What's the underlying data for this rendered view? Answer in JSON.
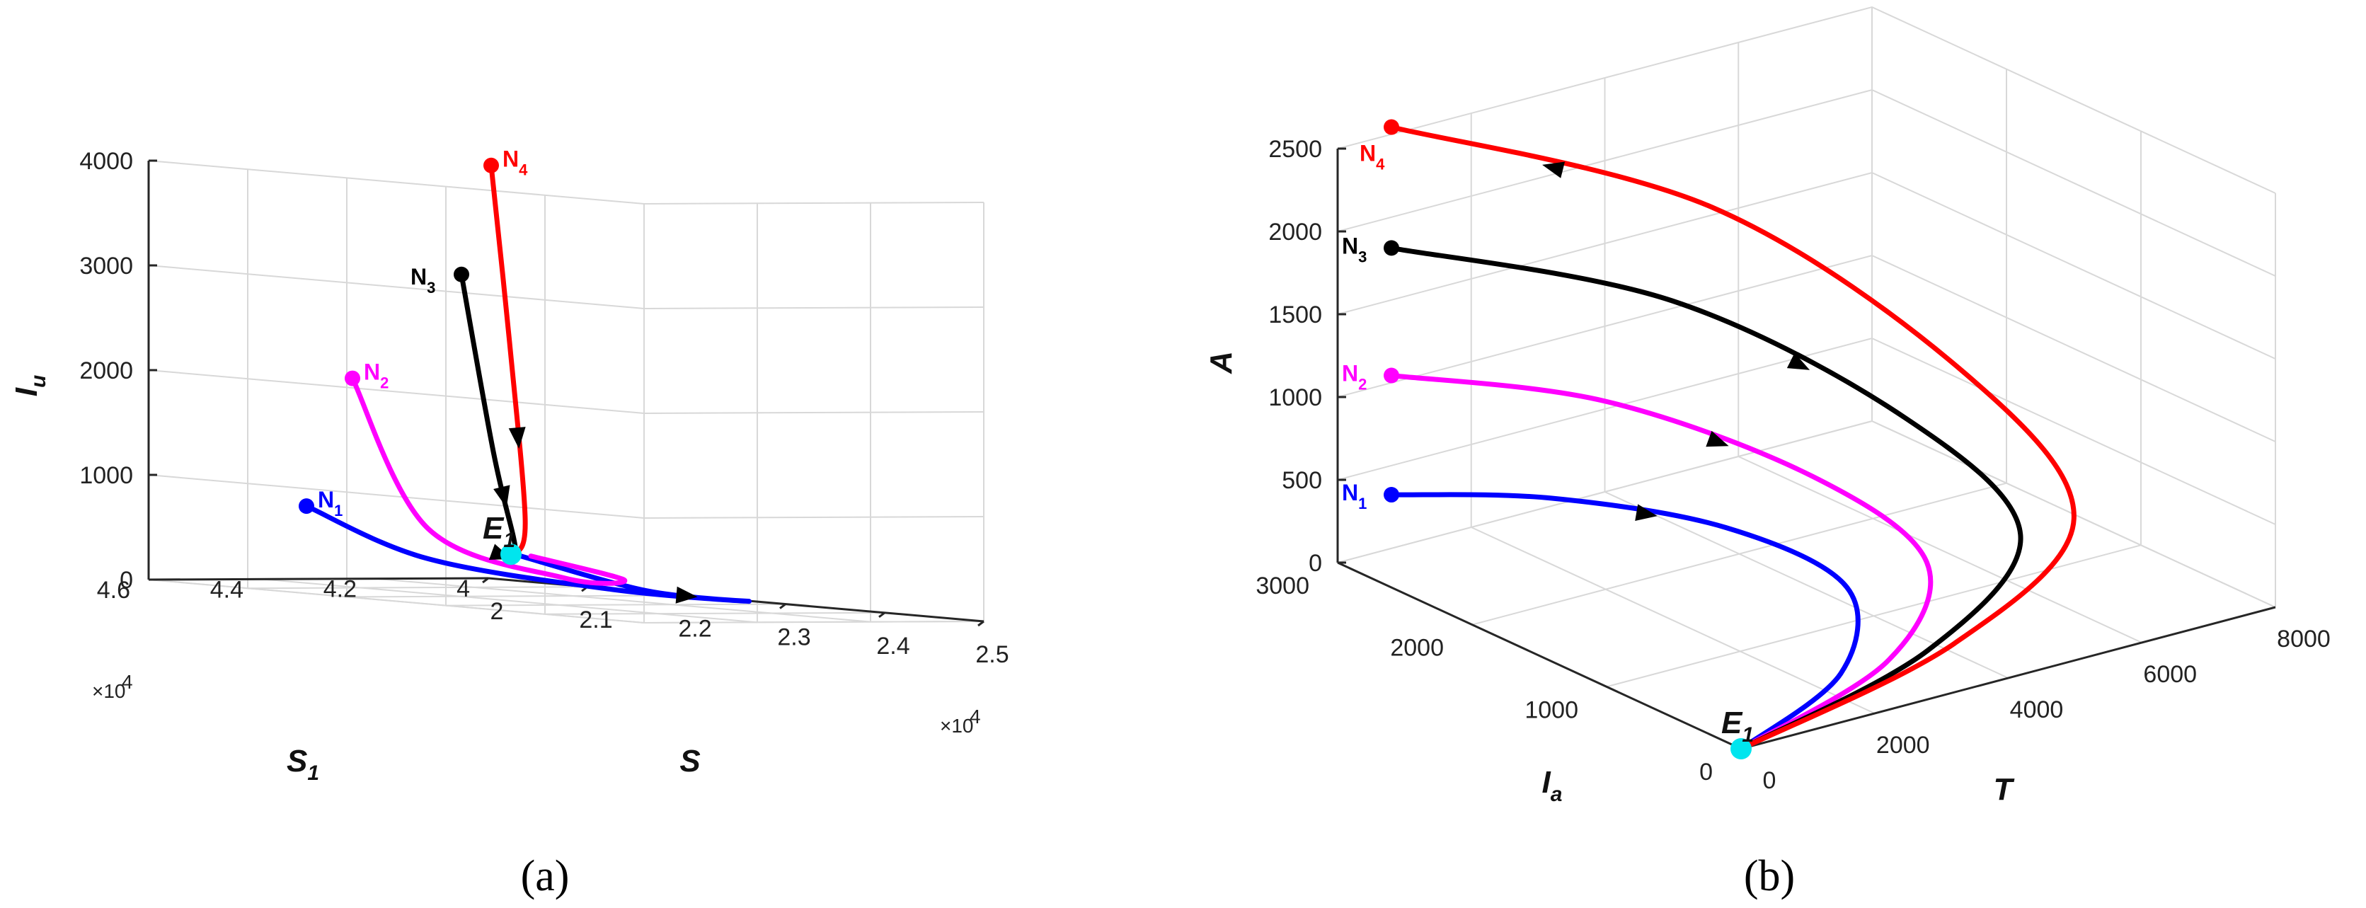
{
  "chart_data": [
    {
      "type": "line",
      "panel_label": "(a)",
      "axes": {
        "S": {
          "label": "S",
          "ticks": [
            "2",
            "2.1",
            "2.2",
            "2.3",
            "2.4",
            "2.5"
          ],
          "range": [
            2,
            2.5
          ],
          "exponent": "×10",
          "exponent_power": "4"
        },
        "S1": {
          "label": "S",
          "label_sub": "1",
          "ticks": [
            "4",
            "4.2",
            "4.4",
            "4.6"
          ],
          "range": [
            4,
            4.6
          ],
          "exponent": "×10",
          "exponent_power": "4"
        },
        "Iu": {
          "label": "I",
          "label_sub": "u",
          "ticks": [
            "0",
            "1000",
            "2000",
            "3000",
            "4000"
          ],
          "range": [
            0,
            4000
          ]
        }
      },
      "equilibrium": {
        "name": "E",
        "sub": "1",
        "S": 22000,
        "S1": 43100,
        "Iu": 400
      },
      "series": [
        {
          "name": "N",
          "sub": "1",
          "color": "#0000ff",
          "points": [
            [
              20050,
              43300,
              700
            ],
            [
              20700,
              42300,
              250
            ],
            [
              22000,
              41300,
              60
            ],
            [
              23600,
              41700,
              80
            ],
            [
              23200,
              42800,
              150
            ],
            [
              22050,
              43100,
              400
            ]
          ]
        },
        {
          "name": "N",
          "sub": "2",
          "color": "#ff00ff",
          "points": [
            [
              21000,
              44150,
              2000
            ],
            [
              21450,
              43600,
              600
            ],
            [
              22300,
              42700,
              200
            ],
            [
              22800,
              42500,
              220
            ],
            [
              22200,
              43100,
              400
            ]
          ]
        },
        {
          "name": "N",
          "sub": "3",
          "color": "#000000",
          "points": [
            [
              22300,
              44500,
              3100
            ],
            [
              22280,
              43900,
              1400
            ],
            [
              22250,
              43500,
              600
            ],
            [
              22050,
              43100,
              400
            ]
          ]
        },
        {
          "name": "N",
          "sub": "4",
          "color": "#ff0000",
          "points": [
            [
              23000,
              45200,
              4200
            ],
            [
              22900,
              44700,
              2500
            ],
            [
              22600,
              43900,
              800
            ],
            [
              22050,
              43100,
              400
            ]
          ]
        }
      ]
    },
    {
      "type": "line",
      "panel_label": "(b)",
      "axes": {
        "T": {
          "label": "T",
          "ticks": [
            "0",
            "2000",
            "4000",
            "6000",
            "8000"
          ],
          "range": [
            0,
            8000
          ]
        },
        "Ia": {
          "label": "I",
          "label_sub": "a",
          "ticks": [
            "0",
            "1000",
            "2000",
            "3000"
          ],
          "range": [
            0,
            3000
          ]
        },
        "A": {
          "label": "A",
          "ticks": [
            "0",
            "500",
            "1000",
            "1500",
            "2000",
            "2500"
          ],
          "range": [
            0,
            2500
          ]
        }
      },
      "equilibrium": {
        "name": "E",
        "sub": "1",
        "T": 0,
        "Ia": 0,
        "A": 0
      },
      "series": [
        {
          "name": "N",
          "sub": "1",
          "color": "#0000ff",
          "points": [
            [
              0,
              2600,
              560
            ],
            [
              2000,
              2400,
              400
            ],
            [
              3800,
              2000,
              180
            ],
            [
              4200,
              1300,
              40
            ],
            [
              2500,
              500,
              0
            ],
            [
              0,
              0,
              0
            ]
          ]
        },
        {
          "name": "N",
          "sub": "2",
          "color": "#ff00ff",
          "points": [
            [
              0,
              2600,
              1280
            ],
            [
              2800,
              2400,
              900
            ],
            [
              5100,
              2000,
              350
            ],
            [
              5400,
              1300,
              60
            ],
            [
              3200,
              500,
              0
            ],
            [
              0,
              0,
              0
            ]
          ]
        },
        {
          "name": "N",
          "sub": "3",
          "color": "#000000",
          "points": [
            [
              0,
              2600,
              2050
            ],
            [
              3800,
              2400,
              1400
            ],
            [
              6500,
              2000,
              550
            ],
            [
              6800,
              1300,
              80
            ],
            [
              3800,
              500,
              0
            ],
            [
              0,
              0,
              0
            ]
          ]
        },
        {
          "name": "N",
          "sub": "4",
          "color": "#ff0000",
          "points": [
            [
              0,
              2600,
              2780
            ],
            [
              4400,
              2400,
              1900
            ],
            [
              7400,
              2000,
              720
            ],
            [
              7600,
              1300,
              90
            ],
            [
              4200,
              500,
              0
            ],
            [
              0,
              0,
              0
            ]
          ]
        }
      ]
    }
  ]
}
